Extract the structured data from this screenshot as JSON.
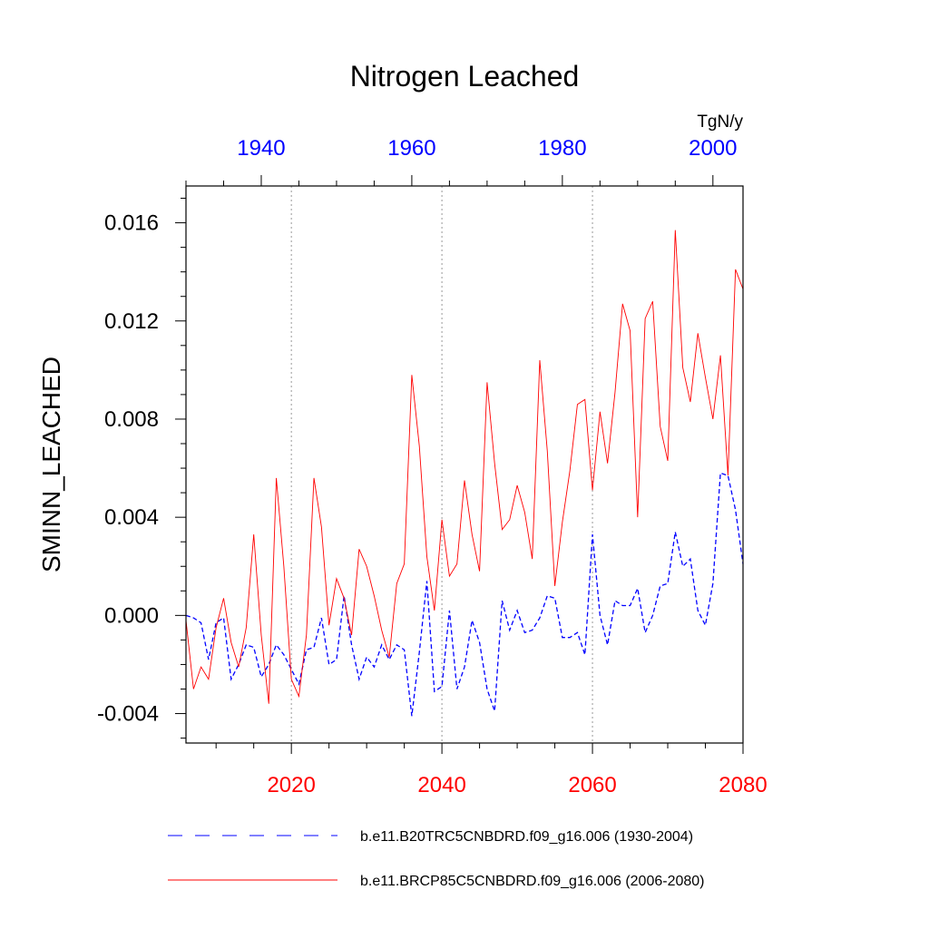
{
  "chart_data": {
    "type": "line",
    "title": "Nitrogen Leached",
    "ylabel": "SMINN_LEACHED",
    "units": "TgN/y",
    "ylim": [
      -0.0052,
      0.0175
    ],
    "yticks": [
      -0.004,
      0.0,
      0.004,
      0.008,
      0.012,
      0.016
    ],
    "ytick_labels": [
      "-0.004",
      "0.000",
      "0.004",
      "0.008",
      "0.012",
      "0.016"
    ],
    "bottom_axis": {
      "range": [
        2006,
        2080
      ],
      "ticks": [
        2020,
        2040,
        2060,
        2080
      ],
      "tick_labels": [
        "2020",
        "2040",
        "2060",
        "2080"
      ],
      "color": "#ff0000"
    },
    "top_axis": {
      "range": [
        1930,
        2004
      ],
      "ticks": [
        1940,
        1960,
        1980,
        2000
      ],
      "tick_labels": [
        "1940",
        "1960",
        "1980",
        "2000"
      ],
      "color": "#0000ff"
    },
    "grid_x": [
      2020,
      2040,
      2060
    ],
    "series": [
      {
        "name": "b.e11.B20TRC5CNBDRD.f09_g16.006 (1930-2004)",
        "axis": "top",
        "color": "#0000ff",
        "style": "dashed",
        "x_start": 1930,
        "values": [
          0.0,
          -0.0001,
          -0.0003,
          -0.0018,
          -0.0003,
          -0.0001,
          -0.0026,
          -0.002,
          -0.0012,
          -0.0013,
          -0.0025,
          -0.002,
          -0.0012,
          -0.0016,
          -0.0022,
          -0.0028,
          -0.0014,
          -0.0013,
          -0.0001,
          -0.002,
          -0.0018,
          0.0008,
          -0.0012,
          -0.0026,
          -0.0017,
          -0.0021,
          -0.0012,
          -0.0018,
          -0.0012,
          -0.0014,
          -0.0041,
          -0.0015,
          0.0014,
          -0.0031,
          -0.0029,
          0.0002,
          -0.003,
          -0.0021,
          -0.0002,
          -0.0011,
          -0.003,
          -0.0039,
          0.0006,
          -0.0006,
          0.0002,
          -0.0007,
          -0.0006,
          -0.0001,
          0.0008,
          0.0007,
          -0.0009,
          -0.0009,
          -0.0007,
          -0.0016,
          0.0033,
          0.0,
          -0.0012,
          0.0006,
          0.0004,
          0.0004,
          0.0011,
          -0.0007,
          0.0,
          0.0012,
          0.0013,
          0.0034,
          0.002,
          0.0023,
          0.0002,
          -0.0004,
          0.0013,
          0.0058,
          0.0057,
          0.0043,
          0.0021
        ]
      },
      {
        "name": "b.e11.BRCP85C5CNBDRD.f09_g16.006 (2006-2080)",
        "axis": "bottom",
        "color": "#ff0000",
        "style": "solid",
        "x_start": 2006,
        "values": [
          -0.0002,
          -0.003,
          -0.0021,
          -0.0026,
          -0.0005,
          0.0007,
          -0.0011,
          -0.0021,
          -0.0005,
          0.0033,
          -0.0008,
          -0.0036,
          0.0056,
          0.002,
          -0.0026,
          -0.0033,
          -0.0008,
          0.0056,
          0.0036,
          -0.0004,
          0.0015,
          0.0007,
          -0.0008,
          0.0027,
          0.002,
          0.0008,
          -0.0006,
          -0.0017,
          0.0013,
          0.0021,
          0.0098,
          0.0069,
          0.0024,
          0.0002,
          0.0039,
          0.0016,
          0.0021,
          0.0055,
          0.0033,
          0.0018,
          0.0095,
          0.0062,
          0.0035,
          0.0039,
          0.0053,
          0.0042,
          0.0023,
          0.0104,
          0.0067,
          0.0012,
          0.0038,
          0.0059,
          0.0086,
          0.0088,
          0.0051,
          0.0083,
          0.0062,
          0.0091,
          0.0127,
          0.0116,
          0.004,
          0.0121,
          0.0128,
          0.0077,
          0.0063,
          0.0157,
          0.0101,
          0.0087,
          0.0115,
          0.0097,
          0.008,
          0.0106,
          0.0057,
          0.0141,
          0.0133
        ]
      }
    ]
  }
}
